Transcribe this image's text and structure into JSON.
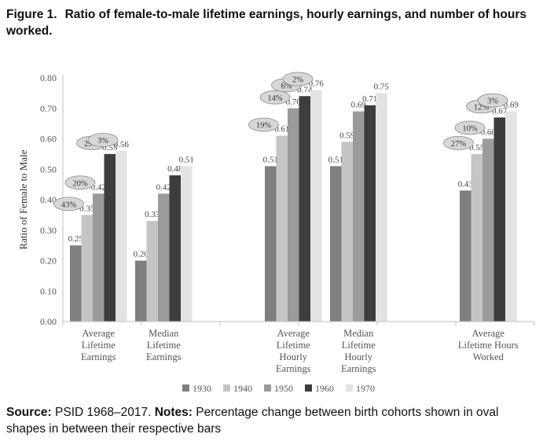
{
  "figure": {
    "label": "Figure 1.",
    "title": "Ratio of female-to-male lifetime earnings, hourly earnings, and number of hours worked."
  },
  "footer": {
    "source_label": "Source:",
    "source_text": "PSID 1968–2017.",
    "notes_label": "Notes:",
    "notes_text": "Percentage change between birth cohorts shown in oval shapes in between their respective bars"
  },
  "chart_data": {
    "type": "bar",
    "ylabel": "Ratio of Female to Male",
    "ylim": [
      0,
      0.8
    ],
    "yticks": [
      "0.00",
      "0.10",
      "0.20",
      "0.30",
      "0.40",
      "0.50",
      "0.60",
      "0.70",
      "0.80"
    ],
    "categories": [
      [
        "Average",
        "Lifetime",
        "Earnings"
      ],
      [
        "Median",
        "Lifetime",
        "Earnings"
      ],
      [
        "Average",
        "Lifetime",
        "Hourly",
        "Earnings"
      ],
      [
        "Median",
        "Lifetime",
        "Hourly",
        "Earnings"
      ],
      [
        "Average",
        "Lifetime Hours",
        "Worked"
      ]
    ],
    "series": [
      {
        "name": "1930",
        "color": "#7f7f7f",
        "values": [
          0.25,
          0.2,
          0.51,
          0.51,
          0.43
        ],
        "labels": [
          "0.25",
          "0.20",
          "0.51",
          "0.51",
          "0.43"
        ]
      },
      {
        "name": "1940",
        "color": "#c5c5c5",
        "values": [
          0.35,
          0.33,
          0.61,
          0.59,
          0.55
        ],
        "labels": [
          "0.35",
          "0.33",
          "0.61",
          "0.59",
          "0.55"
        ]
      },
      {
        "name": "1950",
        "color": "#9b9b9b",
        "values": [
          0.42,
          0.42,
          0.7,
          0.69,
          0.6
        ],
        "labels": [
          "0.42",
          "0.42",
          "0.70",
          "0.69",
          "0.60"
        ]
      },
      {
        "name": "1960",
        "color": "#3d3d3d",
        "values": [
          0.55,
          0.48,
          0.74,
          0.71,
          0.67
        ],
        "labels": [
          "0.55",
          "0.48",
          "0.74",
          "0.71",
          "0.67"
        ]
      },
      {
        "name": "1970",
        "color": "#e3e3e3",
        "values": [
          0.56,
          0.51,
          0.76,
          0.75,
          0.69
        ],
        "labels": [
          "0.56",
          "0.51",
          "0.76",
          "0.75",
          "0.69"
        ]
      }
    ],
    "annotations": [
      {
        "group": 0,
        "labels": [
          "43%",
          "20%",
          "29%",
          "3%"
        ]
      },
      {
        "group": 2,
        "labels": [
          "19%",
          "14%",
          "6%",
          "2%"
        ]
      },
      {
        "group": 4,
        "labels": [
          "27%",
          "10%",
          "12%",
          "3%"
        ]
      }
    ],
    "grid": false,
    "legend_position": "bottom"
  }
}
